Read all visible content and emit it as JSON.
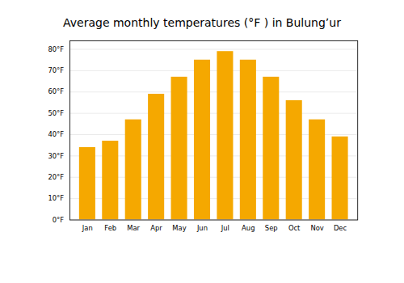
{
  "chart_data": {
    "type": "bar",
    "title": "Average monthly temperatures (°F ) in Bulungʼur",
    "categories": [
      "Jan",
      "Feb",
      "Mar",
      "Apr",
      "May",
      "Jun",
      "Jul",
      "Aug",
      "Sep",
      "Oct",
      "Nov",
      "Dec"
    ],
    "values": [
      34,
      37,
      47,
      59,
      67,
      75,
      79,
      75,
      67,
      56,
      47,
      39
    ],
    "color": "#F5A800",
    "ylim": [
      0,
      84
    ],
    "yticks": [
      {
        "value": 0,
        "label": "0°F"
      },
      {
        "value": 10,
        "label": "10°F"
      },
      {
        "value": 20,
        "label": "20°F"
      },
      {
        "value": 30,
        "label": "30°F"
      },
      {
        "value": 40,
        "label": "40°F"
      },
      {
        "value": 50,
        "label": "50°F"
      },
      {
        "value": 60,
        "label": "60°F"
      },
      {
        "value": 70,
        "label": "70°F"
      },
      {
        "value": 80,
        "label": "80°F"
      }
    ],
    "grid": true
  }
}
